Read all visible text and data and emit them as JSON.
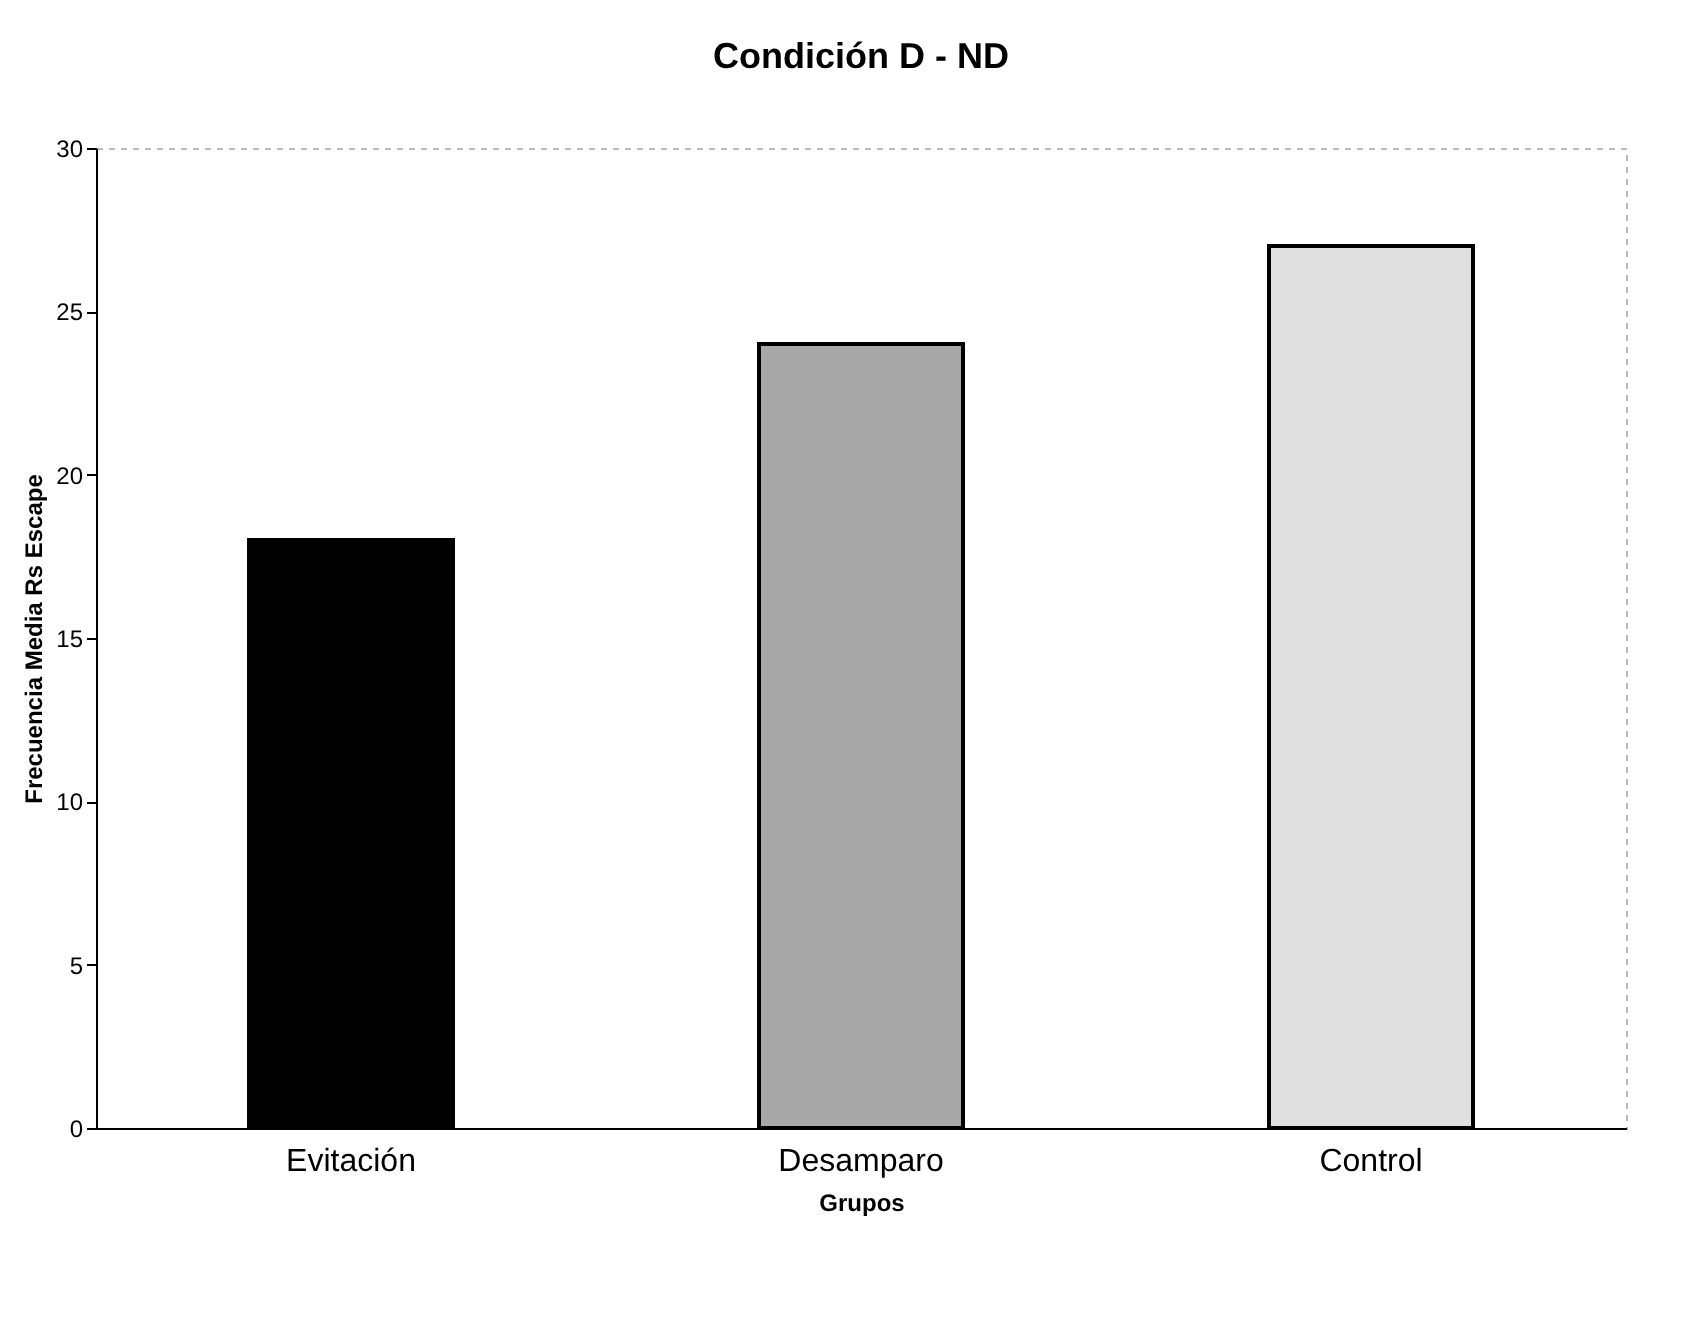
{
  "chart_data": {
    "type": "bar",
    "title": "Condición D - ND",
    "xlabel": "Grupos",
    "ylabel": "Frecuencia Media Rs Escape",
    "categories": [
      "Evitación",
      "Desamparo",
      "Control"
    ],
    "values": [
      18,
      24,
      27
    ],
    "colors": [
      "#000000",
      "#a8a8a8",
      "#e0e0e0"
    ],
    "ylim": [
      0,
      30
    ],
    "yticks": [
      0,
      5,
      10,
      15,
      20,
      25,
      30
    ],
    "grid": false,
    "legend": false
  }
}
